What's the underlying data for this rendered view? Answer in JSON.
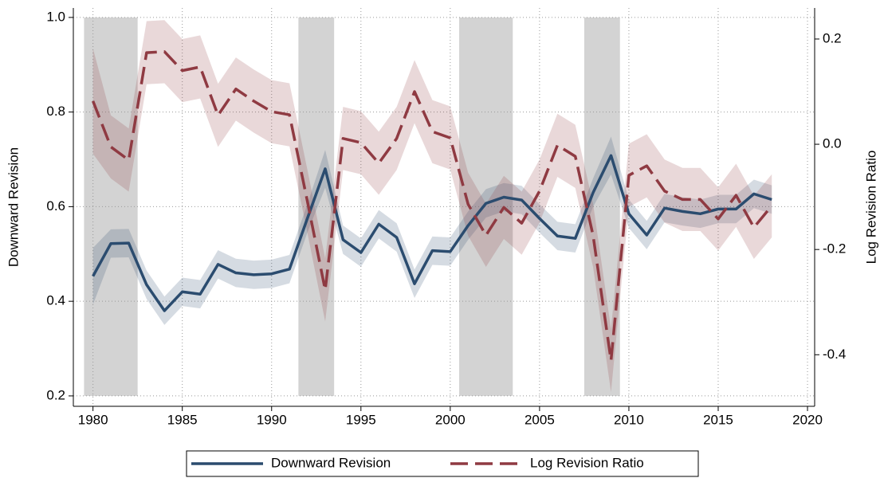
{
  "chart_data": {
    "type": "line",
    "ylabel": "Downward Revision",
    "y2label": "Log Revision Ratio",
    "x": [
      1980,
      1981,
      1982,
      1983,
      1984,
      1985,
      1986,
      1987,
      1988,
      1989,
      1990,
      1991,
      1992,
      1993,
      1994,
      1995,
      1996,
      1997,
      1998,
      1999,
      2000,
      2001,
      2002,
      2003,
      2004,
      2005,
      2006,
      2007,
      2008,
      2009,
      2010,
      2011,
      2012,
      2013,
      2014,
      2015,
      2016,
      2017,
      2018
    ],
    "xlim": [
      1978.9,
      2020.4
    ],
    "xticks": [
      1980,
      1985,
      1990,
      1995,
      2000,
      2005,
      2010,
      2015,
      2020
    ],
    "ylim": [
      0.178,
      1.02
    ],
    "yticks": [
      0.2,
      0.4,
      0.6,
      0.8,
      {
        "value": 1.0,
        "label": "1.0"
      }
    ],
    "y2lim": [
      -0.498,
      0.259
    ],
    "y2ticks": [
      -0.4,
      -0.2,
      {
        "value": 0,
        "label": "0.0"
      },
      0.2
    ],
    "grid": true,
    "shaded_periods": [
      [
        1979.5,
        1982.5
      ],
      [
        1991.5,
        1993.5
      ],
      [
        2000.5,
        2003.5
      ],
      [
        2007.5,
        2009.5
      ]
    ],
    "shade_color": "#d3d3d3",
    "series": [
      {
        "name": "Downward Revision",
        "color": "#2b4c6f",
        "axis": "y",
        "dashed": false,
        "values": [
          0.453,
          0.522,
          0.523,
          0.435,
          0.38,
          0.42,
          0.415,
          0.478,
          0.46,
          0.456,
          0.458,
          0.468,
          0.575,
          0.68,
          0.53,
          0.503,
          0.563,
          0.535,
          0.437,
          0.507,
          0.505,
          0.56,
          0.607,
          0.62,
          0.614,
          0.575,
          0.538,
          0.533,
          0.63,
          0.708,
          0.585,
          0.54,
          0.597,
          0.59,
          0.585,
          0.595,
          0.595,
          0.627,
          0.615
        ],
        "lower": [
          0.393,
          0.492,
          0.493,
          0.405,
          0.35,
          0.39,
          0.385,
          0.448,
          0.43,
          0.426,
          0.428,
          0.438,
          0.545,
          0.64,
          0.5,
          0.473,
          0.533,
          0.505,
          0.407,
          0.477,
          0.475,
          0.53,
          0.577,
          0.59,
          0.584,
          0.545,
          0.508,
          0.503,
          0.6,
          0.668,
          0.555,
          0.51,
          0.567,
          0.56,
          0.555,
          0.565,
          0.565,
          0.597,
          0.585
        ],
        "upper": [
          0.513,
          0.552,
          0.553,
          0.465,
          0.41,
          0.45,
          0.445,
          0.508,
          0.49,
          0.486,
          0.488,
          0.498,
          0.605,
          0.72,
          0.56,
          0.533,
          0.593,
          0.565,
          0.467,
          0.537,
          0.535,
          0.59,
          0.637,
          0.65,
          0.644,
          0.605,
          0.568,
          0.563,
          0.66,
          0.748,
          0.615,
          0.57,
          0.627,
          0.62,
          0.615,
          0.625,
          0.625,
          0.657,
          0.645
        ]
      },
      {
        "name": "Log Revision Ratio",
        "color": "#8f3a42",
        "axis": "y2",
        "dashed": true,
        "values": [
          0.082,
          -0.005,
          -0.03,
          0.174,
          0.176,
          0.14,
          0.147,
          0.055,
          0.105,
          0.082,
          0.062,
          0.056,
          -0.108,
          -0.277,
          0.011,
          0.003,
          -0.036,
          0.011,
          0.1,
          0.024,
          0.012,
          -0.114,
          -0.173,
          -0.12,
          -0.15,
          -0.089,
          -0.002,
          -0.023,
          -0.174,
          -0.411,
          -0.059,
          -0.041,
          -0.089,
          -0.105,
          -0.105,
          -0.142,
          -0.097,
          -0.158,
          -0.117
        ],
        "lower": [
          -0.018,
          -0.065,
          -0.09,
          0.114,
          0.116,
          0.08,
          0.087,
          -0.005,
          0.045,
          0.022,
          0.002,
          -0.004,
          -0.168,
          -0.337,
          -0.049,
          -0.057,
          -0.096,
          -0.049,
          0.04,
          -0.036,
          -0.048,
          -0.174,
          -0.233,
          -0.18,
          -0.21,
          -0.149,
          -0.062,
          -0.083,
          -0.234,
          -0.471,
          -0.119,
          -0.101,
          -0.149,
          -0.165,
          -0.165,
          -0.202,
          -0.157,
          -0.218,
          -0.177
        ],
        "upper": [
          0.182,
          0.055,
          0.03,
          0.234,
          0.236,
          0.2,
          0.207,
          0.115,
          0.165,
          0.142,
          0.122,
          0.116,
          -0.048,
          -0.217,
          0.071,
          0.063,
          0.024,
          0.071,
          0.16,
          0.084,
          0.072,
          -0.054,
          -0.113,
          -0.06,
          -0.09,
          -0.029,
          0.058,
          0.037,
          -0.114,
          -0.351,
          0.001,
          0.019,
          -0.029,
          -0.045,
          -0.045,
          -0.082,
          -0.037,
          -0.098,
          -0.057
        ]
      }
    ]
  }
}
